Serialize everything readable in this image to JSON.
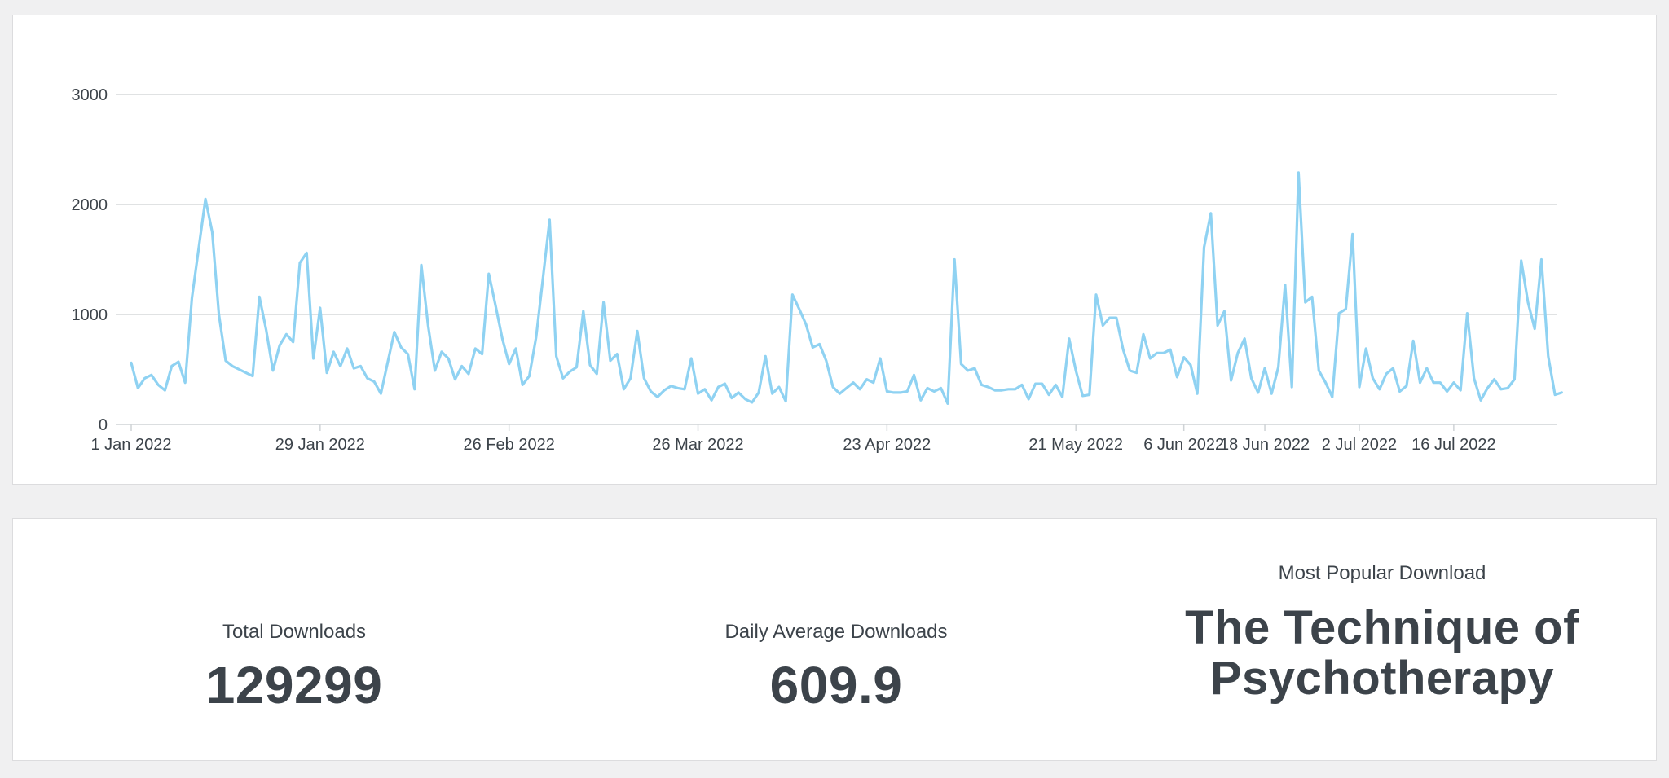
{
  "chart_data": {
    "type": "line",
    "title": "",
    "xlabel": "",
    "ylabel": "",
    "ylim": [
      0,
      3000
    ],
    "y_ticks": [
      0,
      1000,
      2000,
      3000
    ],
    "x_ticks": [
      {
        "date": "2022-01-01",
        "label": "1 Jan 2022"
      },
      {
        "date": "2022-01-29",
        "label": "29 Jan 2022"
      },
      {
        "date": "2022-02-26",
        "label": "26 Feb 2022"
      },
      {
        "date": "2022-03-26",
        "label": "26 Mar 2022"
      },
      {
        "date": "2022-04-23",
        "label": "23 Apr 2022"
      },
      {
        "date": "2022-05-21",
        "label": "21 May 2022"
      },
      {
        "date": "2022-06-06",
        "label": "6 Jun 2022"
      },
      {
        "date": "2022-06-18",
        "label": "18 Jun 2022"
      },
      {
        "date": "2022-07-02",
        "label": "2 Jul 2022"
      },
      {
        "date": "2022-07-16",
        "label": "16 Jul 2022"
      }
    ],
    "grid": true,
    "line_color": "#8fd2f2",
    "x_start": "2022-01-01",
    "x_end": "2022-08-01",
    "series": [
      {
        "name": "",
        "values": [
          560,
          330,
          420,
          450,
          360,
          310,
          530,
          570,
          380,
          1150,
          1600,
          2050,
          1750,
          1000,
          580,
          530,
          500,
          470,
          440,
          1160,
          860,
          490,
          720,
          820,
          750,
          1470,
          1560,
          600,
          1060,
          470,
          660,
          530,
          690,
          510,
          530,
          420,
          390,
          280,
          560,
          840,
          700,
          640,
          320,
          1450,
          900,
          490,
          660,
          600,
          410,
          530,
          460,
          690,
          640,
          1370,
          1080,
          780,
          550,
          690,
          360,
          440,
          790,
          1320,
          1860,
          620,
          420,
          480,
          520,
          1030,
          540,
          460,
          1110,
          580,
          640,
          320,
          420,
          850,
          420,
          300,
          250,
          310,
          350,
          330,
          320,
          600,
          280,
          320,
          220,
          340,
          370,
          240,
          290,
          230,
          200,
          290,
          620,
          280,
          340,
          210,
          1180,
          1050,
          910,
          700,
          730,
          580,
          340,
          280,
          330,
          380,
          320,
          410,
          380,
          600,
          300,
          290,
          290,
          300,
          450,
          220,
          330,
          300,
          330,
          190,
          1500,
          550,
          490,
          510,
          360,
          340,
          310,
          310,
          320,
          320,
          360,
          230,
          370,
          370,
          270,
          360,
          250,
          780,
          490,
          260,
          270,
          1180,
          900,
          970,
          970,
          680,
          490,
          470,
          820,
          600,
          650,
          650,
          680,
          430,
          610,
          540,
          280,
          1610,
          1920,
          900,
          1030,
          400,
          650,
          780,
          420,
          290,
          510,
          280,
          520,
          1270,
          340,
          2290,
          1110,
          1160,
          490,
          380,
          250,
          1010,
          1050,
          1730,
          340,
          690,
          420,
          320,
          460,
          510,
          300,
          350,
          760,
          380,
          510,
          380,
          380,
          300,
          380,
          310,
          1010,
          420,
          220,
          330,
          410,
          320,
          330,
          410,
          1490,
          1110,
          870,
          1500,
          620,
          270,
          290
        ]
      }
    ]
  },
  "stats": {
    "total_label": "Total Downloads",
    "total_value": "129299",
    "average_label": "Daily Average Downloads",
    "average_value": "609.9",
    "popular_label": "Most Popular Download",
    "popular_value": "The Technique of Psychotherapy"
  }
}
